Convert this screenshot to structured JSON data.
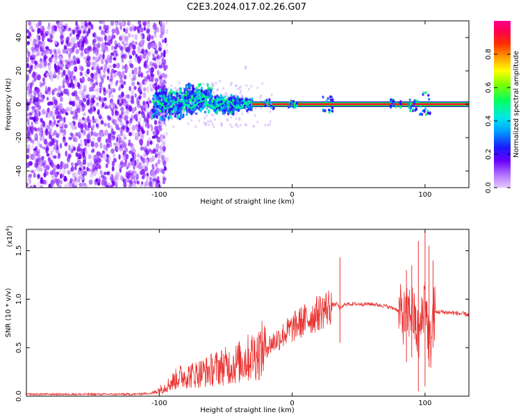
{
  "title": "C2E3.2024.017.02.26.G07",
  "chart_data": [
    {
      "type": "heatmap",
      "xlabel": "Height of straight line (km)",
      "ylabel": "Frequency (Hz)",
      "xlim": [
        -200,
        133
      ],
      "ylim": [
        -50,
        50
      ],
      "xticks": [
        -100,
        0,
        100
      ],
      "yticks": [
        -40,
        -20,
        0,
        20,
        40
      ],
      "colorbar": {
        "label": "Normalized spectral amplitude",
        "range": [
          0,
          1
        ],
        "ticks": [
          "0.0",
          "0.2",
          "0.4",
          "0.6",
          "0.8"
        ]
      },
      "regions": {
        "noise_x": [
          -200,
          -98
        ],
        "transition_x": [
          -105,
          -30
        ],
        "signal_line_x": [
          -30,
          133
        ],
        "signal_frequency": 0
      }
    },
    {
      "type": "line",
      "xlabel": "Height of straight line (km)",
      "ylabel": "SNR (10 * v/v)",
      "scale_label": "(x10",
      "scale_exponent": "4",
      "scale_close": ")",
      "xlim": [
        -200,
        133
      ],
      "ylim": [
        0,
        1.72
      ],
      "xticks": [
        -100,
        0,
        100
      ],
      "yticks": [
        "0.0",
        "0.5",
        "1.0",
        "1.5"
      ],
      "series": [
        {
          "color": "#e8312f",
          "x": [
            -200,
            -160,
            -120,
            -105,
            -95,
            -85,
            -75,
            -65,
            -55,
            -45,
            -35,
            -25,
            -15,
            -5,
            5,
            15,
            25,
            30,
            34,
            36,
            40,
            50,
            60,
            70,
            78,
            82,
            85,
            90,
            95,
            98,
            100,
            102,
            104,
            106,
            110,
            120,
            133
          ],
          "y": [
            0.02,
            0.02,
            0.02,
            0.03,
            0.1,
            0.2,
            0.22,
            0.25,
            0.3,
            0.32,
            0.38,
            0.45,
            0.55,
            0.65,
            0.75,
            0.82,
            0.9,
            0.94,
            0.95,
            0.9,
            0.95,
            0.95,
            0.95,
            0.93,
            0.9,
            0.85,
            0.8,
            0.9,
            0.6,
            0.8,
            1.1,
            0.7,
            0.5,
            0.85,
            0.87,
            0.86,
            0.84
          ]
        }
      ],
      "spikes": [
        {
          "x": 36,
          "high": 1.43,
          "low": 0.55
        },
        {
          "x": 95,
          "high": 1.6,
          "low": 0.05
        },
        {
          "x": 100,
          "high": 1.7,
          "low": 0.1
        },
        {
          "x": 103,
          "high": 1.55,
          "low": 0.3
        },
        {
          "x": 106,
          "high": 1.4,
          "low": 0.5
        },
        {
          "x": 90,
          "high": 1.35,
          "low": 0.4
        },
        {
          "x": 86,
          "high": 1.3,
          "low": 0.35
        }
      ]
    }
  ]
}
